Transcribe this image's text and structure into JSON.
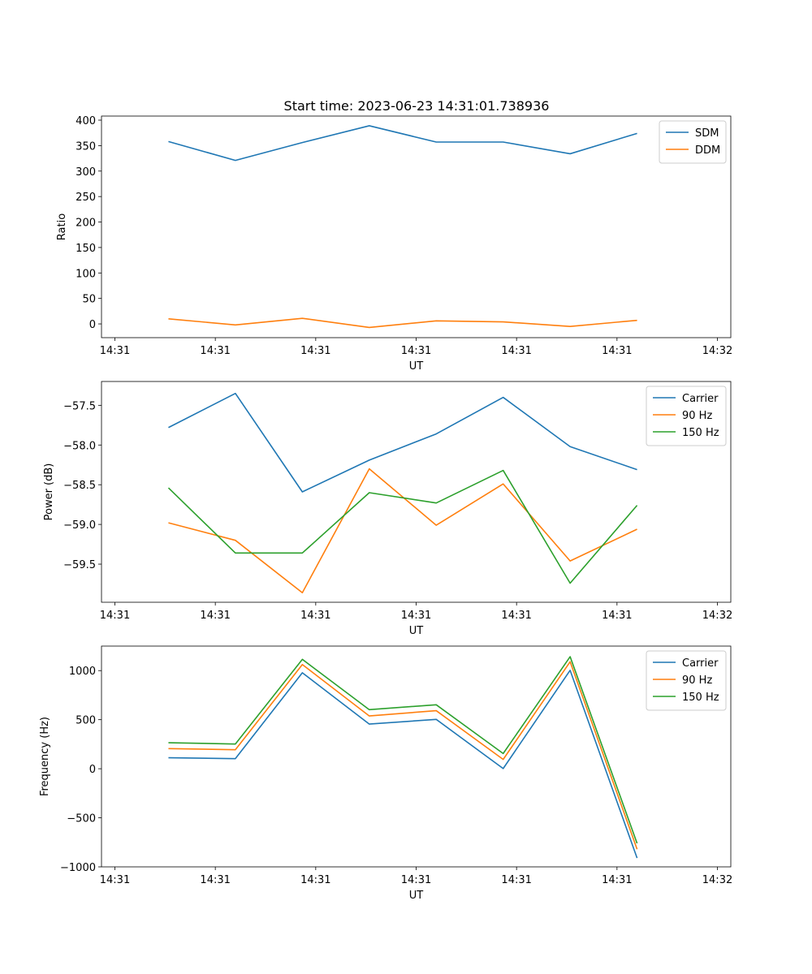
{
  "figure": {
    "title": "Start time: 2023-06-23 14:31:01.738936"
  },
  "chart_data": [
    {
      "type": "line",
      "xlabel": "UT",
      "ylabel": "Ratio",
      "x": [
        1,
        2,
        3,
        4,
        5,
        6,
        7,
        8
      ],
      "x_ticks": [
        0.2,
        1.7,
        3.2,
        4.7,
        6.2,
        7.7,
        9.2
      ],
      "x_tick_labels": [
        "14:31",
        "14:31",
        "14:31",
        "14:31",
        "14:31",
        "14:31",
        "14:32"
      ],
      "xlim": [
        0,
        9.4
      ],
      "ylim": [
        -27,
        408
      ],
      "y_ticks": [
        0,
        50,
        100,
        150,
        200,
        250,
        300,
        350,
        400
      ],
      "y_tick_labels": [
        "0",
        "50",
        "100",
        "150",
        "200",
        "250",
        "300",
        "350",
        "400"
      ],
      "legend_position": "top-right",
      "series": [
        {
          "name": "SDM",
          "color": "#1f77b4",
          "values": [
            358,
            321,
            356,
            389,
            357,
            357,
            334,
            374
          ]
        },
        {
          "name": "DDM",
          "color": "#ff7f0e",
          "values": [
            10,
            -2,
            11,
            -7,
            6,
            4,
            -5,
            7
          ]
        }
      ]
    },
    {
      "type": "line",
      "xlabel": "UT",
      "ylabel": "Power (dB)",
      "x": [
        1,
        2,
        3,
        4,
        5,
        6,
        7,
        8
      ],
      "x_ticks": [
        0.2,
        1.7,
        3.2,
        4.7,
        6.2,
        7.7,
        9.2
      ],
      "x_tick_labels": [
        "14:31",
        "14:31",
        "14:31",
        "14:31",
        "14:31",
        "14:31",
        "14:32"
      ],
      "xlim": [
        0,
        9.4
      ],
      "ylim": [
        -59.98,
        -57.2
      ],
      "y_ticks": [
        -59.5,
        -59.0,
        -58.5,
        -58.0,
        -57.5
      ],
      "y_tick_labels": [
        "−59.5",
        "−59.0",
        "−58.5",
        "−58.0",
        "−57.5"
      ],
      "legend_position": "top-right",
      "series": [
        {
          "name": "Carrier",
          "color": "#1f77b4",
          "values": [
            -57.78,
            -57.35,
            -58.59,
            -58.19,
            -57.86,
            -57.4,
            -58.02,
            -58.31
          ]
        },
        {
          "name": "90 Hz",
          "color": "#ff7f0e",
          "values": [
            -58.98,
            -59.2,
            -59.86,
            -58.3,
            -59.01,
            -58.49,
            -59.46,
            -59.06
          ]
        },
        {
          "name": "150 Hz",
          "color": "#2ca02c",
          "values": [
            -58.54,
            -59.36,
            -59.36,
            -58.6,
            -58.73,
            -58.32,
            -59.74,
            -58.76
          ]
        }
      ]
    },
    {
      "type": "line",
      "xlabel": "UT",
      "ylabel": "Frequency (Hz)",
      "x": [
        1,
        2,
        3,
        4,
        5,
        6,
        7,
        8
      ],
      "x_ticks": [
        0.2,
        1.7,
        3.2,
        4.7,
        6.2,
        7.7,
        9.2
      ],
      "x_tick_labels": [
        "14:31",
        "14:31",
        "14:31",
        "14:31",
        "14:31",
        "14:31",
        "14:32"
      ],
      "xlim": [
        0,
        9.4
      ],
      "ylim": [
        -1000,
        1250
      ],
      "y_ticks": [
        -1000,
        -500,
        0,
        500,
        1000
      ],
      "y_tick_labels": [
        "−1000",
        "−500",
        "0",
        "500",
        "1000"
      ],
      "legend_position": "top-right",
      "series": [
        {
          "name": "Carrier",
          "color": "#1f77b4",
          "values": [
            112,
            103,
            978,
            455,
            503,
            2,
            1003,
            -910
          ]
        },
        {
          "name": "90 Hz",
          "color": "#ff7f0e",
          "values": [
            205,
            194,
            1062,
            538,
            592,
            95,
            1090,
            -820
          ]
        },
        {
          "name": "150 Hz",
          "color": "#2ca02c",
          "values": [
            265,
            252,
            1115,
            602,
            652,
            155,
            1142,
            -760
          ]
        }
      ]
    }
  ]
}
